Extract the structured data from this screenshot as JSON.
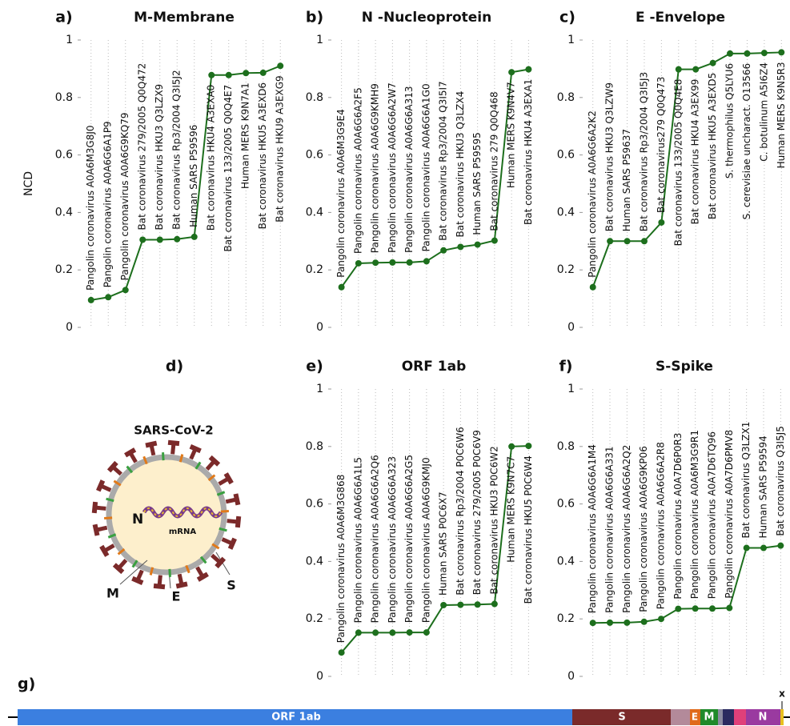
{
  "chart_data": [
    {
      "type": "line",
      "label": "a)",
      "title": "M-Membrane",
      "ylabel": "NCD",
      "color": "#1d6f1d",
      "categories": [
        "Pangolin coronavirus A0A6M3G8J0",
        "Pangolin coronavirus A0A6G6A1P9",
        "Pangolin coronavirus A0A6G9KQ79",
        "Bat coronavirus 279/2005 Q0Q472",
        "Bat coronavirus HKU3 Q3LZX9",
        "Bat coronavirus Rp3/2004 Q3I5J2",
        "Human SARS P59596",
        "Bat coronavirus HKU4 A3EXA0",
        "Bat coronavirus 133/2005 Q0Q4E7",
        "Human MERS K9N7A1",
        "Bat coronavirus HKU5 A3EXD6",
        "Bat coronavirus HKU9 A3EXG9"
      ],
      "values": [
        0.095,
        0.105,
        0.13,
        0.305,
        0.305,
        0.307,
        0.315,
        0.878,
        0.878,
        0.885,
        0.886,
        0.91
      ],
      "ylim": [
        0,
        1
      ],
      "yticks": [
        0,
        0.2,
        0.4,
        0.6,
        0.8,
        1
      ],
      "grid": true
    },
    {
      "type": "line",
      "label": "b)",
      "title": "N -Nucleoprotein",
      "color": "#1d6f1d",
      "categories": [
        "Pangolin coronavirus A0A6M3G9E4",
        "Pangolin coronavirus A0A6G6A2F5",
        "Pangolin coronavirus A0A6G9KMH9",
        "Pangolin coronavirus A0A6G6A2W7",
        "Pangolin coronavirus A0A6G6A313",
        "Pangolin coronavirus A0A6G6A1G0",
        "Bat coronavirus Rp3/2004 Q3I5I7",
        "Bat coronavirus HKU3 Q3LZX4",
        "Human SARS P59595",
        "Bat coronavirus 279 Q0Q468",
        "Human MERS K9N4V7",
        "Bat coronavirus HKU4 A3EXA1"
      ],
      "values": [
        0.14,
        0.223,
        0.225,
        0.226,
        0.226,
        0.23,
        0.268,
        0.28,
        0.288,
        0.302,
        0.888,
        0.898
      ],
      "ylim": [
        0,
        1
      ],
      "yticks": [
        0,
        0.2,
        0.4,
        0.6,
        0.8,
        1
      ],
      "grid": true
    },
    {
      "type": "line",
      "label": "c)",
      "title": "E -Envelope",
      "color": "#1d6f1d",
      "categories": [
        "Pangolin coronavirus A0A6G6A2K2",
        "Bat coronavirus HKU3 Q3LZW9",
        "Human SARS P59637",
        "Bat coronavirus Rp3/2004 Q3I5J3",
        "Bat coronavirus279 Q0Q473",
        "Bat coronavirus 133/2005 Q0Q4E8",
        "Bat coronavirus HKU4 A3EX99",
        "Bat coronavirus HKU5 A3EXD5",
        "S. thermophilus Q5LYU6",
        "S. cerevisiae uncharact. O13566",
        "C. botulinum A5I6Z4",
        "Human MERS K9N5R3"
      ],
      "values": [
        0.14,
        0.3,
        0.3,
        0.3,
        0.365,
        0.898,
        0.898,
        0.92,
        0.953,
        0.953,
        0.955,
        0.957
      ],
      "ylim": [
        0,
        1
      ],
      "yticks": [
        0,
        0.2,
        0.4,
        0.6,
        0.8,
        1
      ],
      "grid": true
    },
    {
      "type": "line",
      "label": "e)",
      "title": "ORF 1ab",
      "color": "#1d6f1d",
      "categories": [
        "Pangolin coronavirus A0A6M3G868",
        "Pangolin coronavirus A0A6G6A1L5",
        "Pangolin coronavirus A0A6G6A2Q6",
        "Pangolin coronavirus A0A6G6A323",
        "Pangolin coronavirus A0A6G6A2G5",
        "Pangolin coronavirus A0A6G9KMJ0",
        "Human SARS P0C6X7",
        "Bat coronavirus Rp3/2004 P0C6W6",
        "Bat coronavirus 279/2005 P0C6V9",
        "Bat coronavirus HKU3 P0C6W2",
        "Human MERS K9N7C7",
        "Bat coronavirus HKU5 P0C6W4"
      ],
      "values": [
        0.083,
        0.152,
        0.152,
        0.152,
        0.153,
        0.153,
        0.248,
        0.249,
        0.25,
        0.252,
        0.8,
        0.802
      ],
      "ylim": [
        0,
        1
      ],
      "yticks": [
        0,
        0.2,
        0.4,
        0.6,
        0.8,
        1
      ],
      "grid": true
    },
    {
      "type": "line",
      "label": "f)",
      "title": "S-Spike",
      "color": "#1d6f1d",
      "categories": [
        "Pangolin coronavirus A0A6G6A1M4",
        "Pangolin coronavirus A0A6G6A331",
        "Pangolin coronavirus A0A6G6A2Q2",
        "Pangolin coronavirus A0A6G9KP06",
        "Pangolin coronavirus A0A6G6A2R8",
        "Pangolin coronavirus A0A7D6P0R3",
        "Pangolin coronavirus A0A6M3G9R1",
        "Pangolin coronavirus A0A7D6TQ96",
        "Pangolin coronavirus A0A7D6PMV8",
        "Bat coronavirus Q3LZX1",
        "Human SARS P59594",
        "Bat coronavirus Q3I5J5"
      ],
      "values": [
        0.186,
        0.187,
        0.187,
        0.19,
        0.2,
        0.235,
        0.236,
        0.236,
        0.238,
        0.447,
        0.447,
        0.455
      ],
      "ylim": [
        0,
        1
      ],
      "yticks": [
        0,
        0.2,
        0.4,
        0.6,
        0.8,
        1
      ],
      "grid": true
    }
  ],
  "diagram": {
    "label": "d)",
    "title": "SARS-CoV-2",
    "parts": [
      "N",
      "mRNA",
      "M",
      "E",
      "S"
    ]
  },
  "genome": {
    "label": "g)",
    "segments": [
      "ORF 1ab",
      "S",
      "E",
      "M",
      "N",
      "x"
    ]
  }
}
